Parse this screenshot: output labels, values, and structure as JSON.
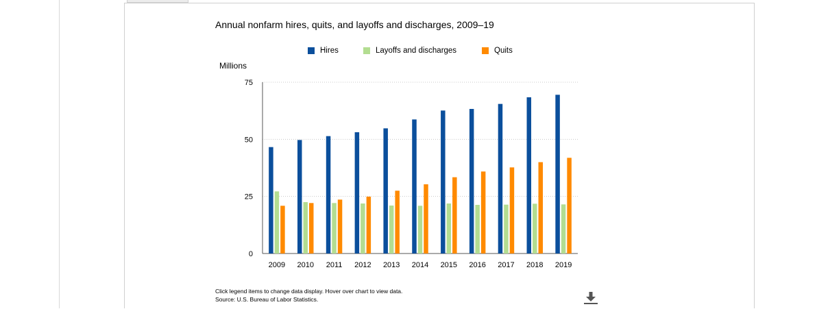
{
  "chart_data": {
    "type": "bar",
    "title": "Annual nonfarm hires, quits, and layoffs and discharges, 2009–19",
    "ylabel": "Millions",
    "xlabel": "",
    "ylim": [
      0,
      75
    ],
    "yticks": [
      0,
      25,
      50,
      75
    ],
    "grid": true,
    "legend_position": "top",
    "categories": [
      "2009",
      "2010",
      "2011",
      "2012",
      "2013",
      "2014",
      "2015",
      "2016",
      "2017",
      "2018",
      "2019"
    ],
    "series": [
      {
        "name": "Hires",
        "color": "#0b4f9c",
        "values": [
          46.6,
          49.7,
          51.4,
          53.1,
          54.8,
          58.7,
          62.6,
          63.3,
          65.5,
          68.4,
          69.5
        ]
      },
      {
        "name": "Layoffs and discharges",
        "color": "#b3dd91",
        "values": [
          27.2,
          22.5,
          22.1,
          21.9,
          21.0,
          20.9,
          21.9,
          21.3,
          21.4,
          21.8,
          21.5
        ]
      },
      {
        "name": "Quits",
        "color": "#ff8a00",
        "values": [
          20.9,
          22.1,
          23.6,
          24.9,
          27.5,
          30.3,
          33.4,
          35.9,
          37.7,
          40.0,
          41.9
        ]
      }
    ]
  },
  "footnote": {
    "line1": "Click legend items to change data display. Hover over chart to view data.",
    "line2": "Source: U.S. Bureau of Labor Statistics."
  },
  "icons": {
    "download": "download-icon"
  },
  "colors": {
    "grid": "#c8c8c8",
    "axis": "#555555"
  }
}
